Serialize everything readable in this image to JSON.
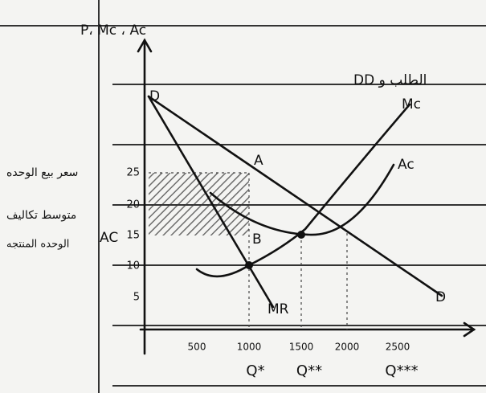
{
  "header": {
    "y_axis_title": "P، Mc ، Ac",
    "demand_title": "DD الطلب و"
  },
  "y_ticks": [
    "25",
    "20",
    "15",
    "10",
    "5"
  ],
  "x_ticks": [
    "500",
    "1000",
    "1500",
    "2000",
    "2500"
  ],
  "quantities": [
    "Q*",
    "Q**",
    "Q***"
  ],
  "curves": {
    "mc": "Mc",
    "ac": "Ac",
    "mr": "MR",
    "demand_start": "D",
    "demand_end": "D"
  },
  "points": {
    "a": "A",
    "b": "B"
  },
  "side_notes": {
    "price": "سعر بيع الوحده",
    "cost_1": "متوسط تكاليف",
    "cost_2": "الوحده المنتجه",
    "ac": "AC"
  }
}
